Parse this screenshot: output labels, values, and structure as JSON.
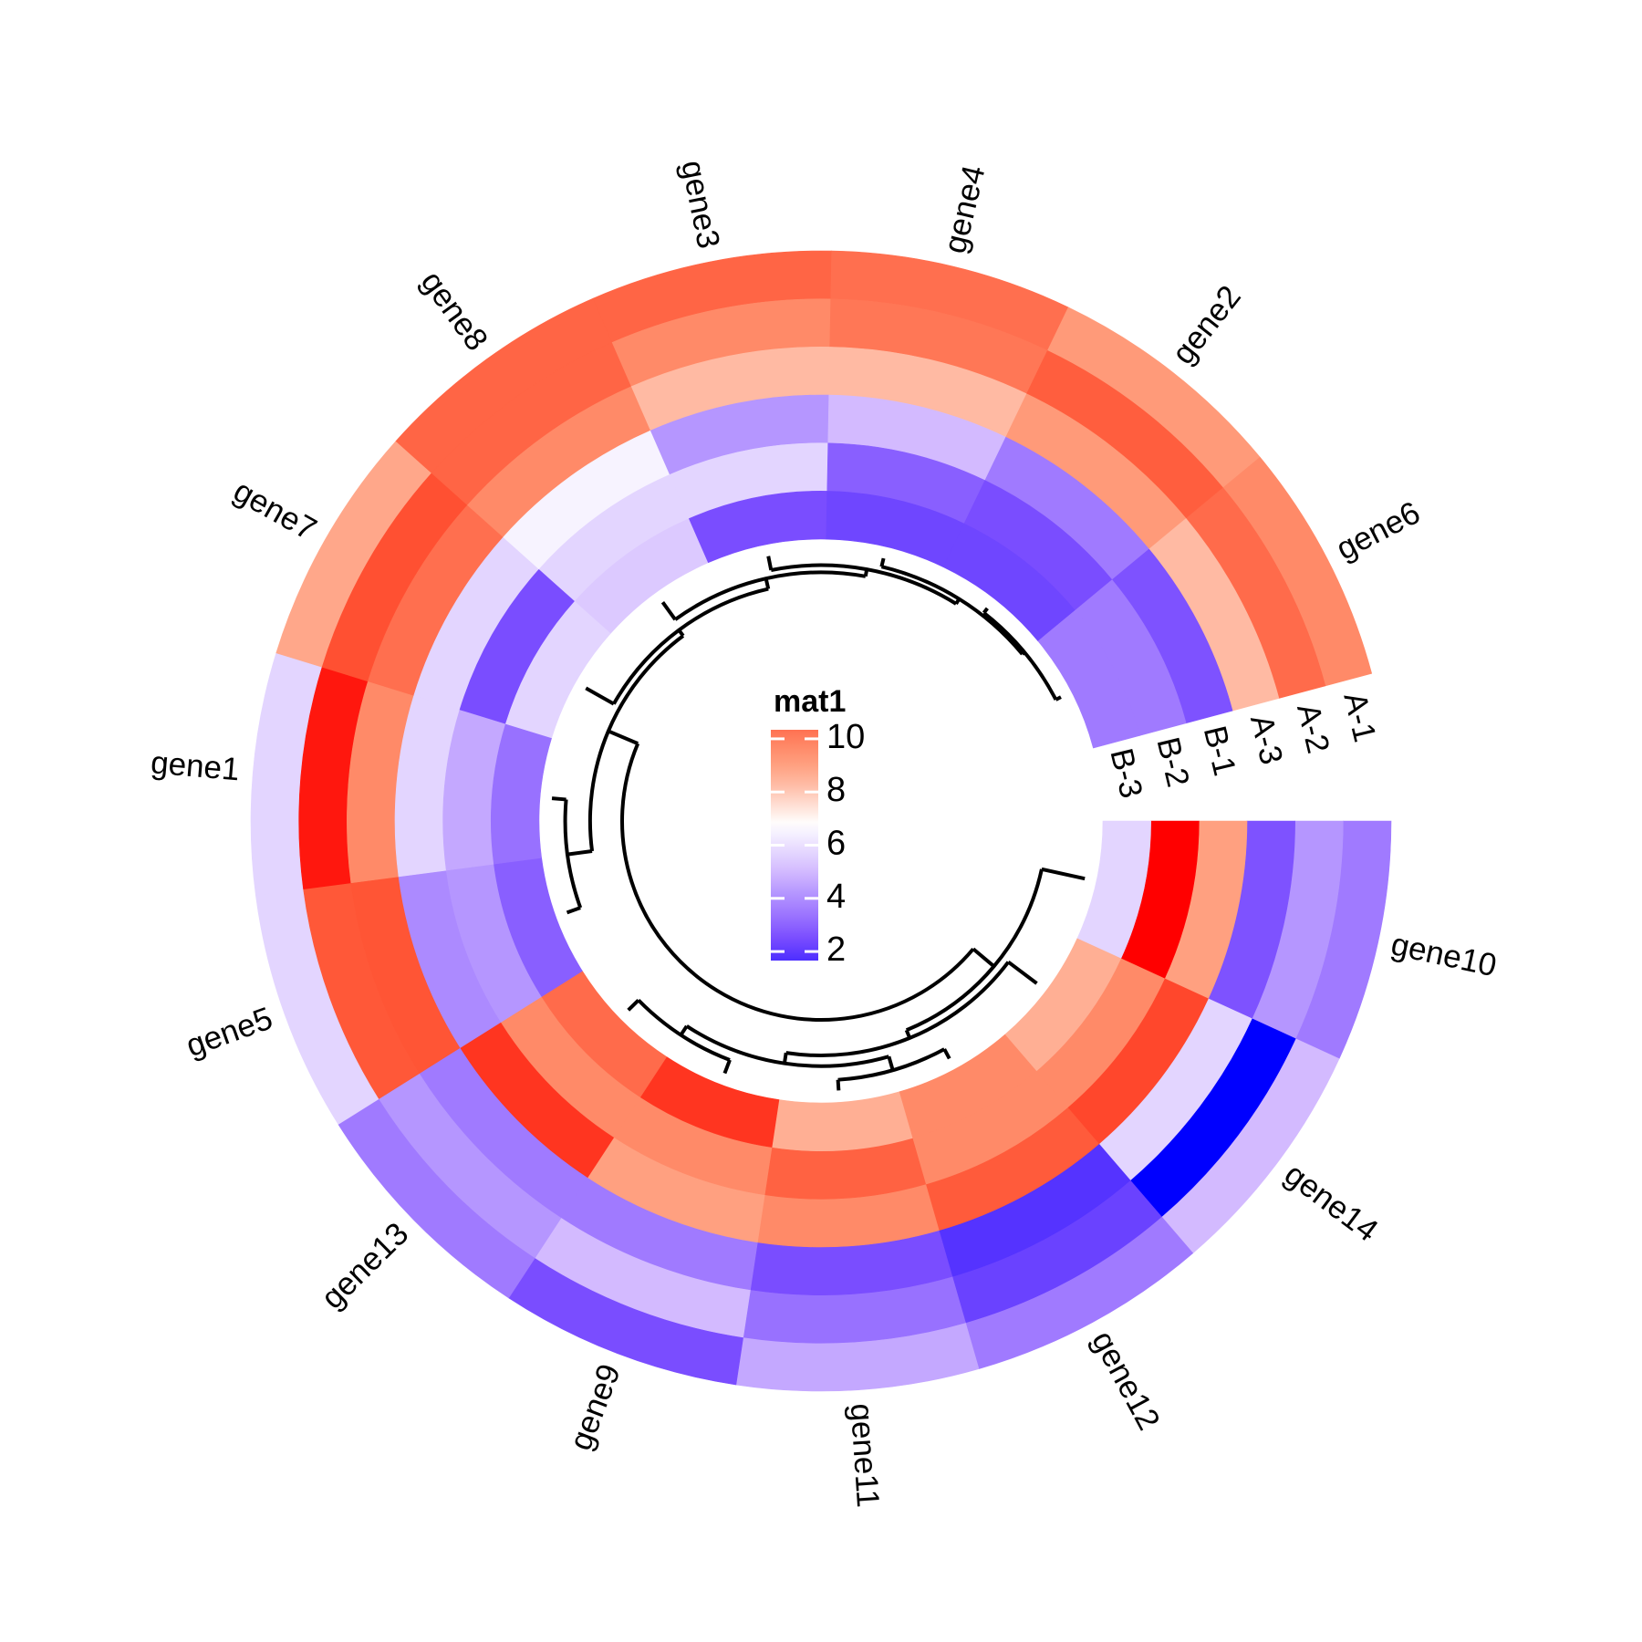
{
  "chart_data": {
    "type": "heatmap",
    "layout": "circular",
    "rows": [
      "gene10",
      "gene14",
      "gene12",
      "gene11",
      "gene9",
      "gene13",
      "gene5",
      "gene1",
      "gene7",
      "gene8",
      "gene3",
      "gene4",
      "gene2",
      "gene6"
    ],
    "columns": [
      "A-1",
      "A-2",
      "A-3",
      "B-1",
      "B-2",
      "B-3"
    ],
    "values": [
      [
        3.5,
        4.2,
        2.6,
        9.0,
        12.6,
        5.7
      ],
      [
        5.0,
        0.4,
        5.7,
        11.5,
        9.7,
        8.6
      ],
      [
        3.5,
        2.2,
        1.8,
        11.0,
        9.7,
        9.7
      ],
      [
        4.6,
        3.3,
        2.5,
        9.7,
        10.8,
        8.6
      ],
      [
        2.5,
        5.0,
        3.5,
        9.0,
        9.7,
        11.9
      ],
      [
        3.5,
        4.2,
        3.5,
        11.9,
        9.7,
        10.5
      ],
      [
        5.7,
        11.1,
        11.2,
        3.9,
        4.2,
        2.9
      ],
      [
        5.7,
        12.3,
        9.7,
        5.7,
        4.6,
        3.3
      ],
      [
        8.8,
        11.3,
        10.4,
        5.7,
        2.5,
        5.7
      ],
      [
        10.7,
        10.7,
        9.7,
        6.5,
        5.7,
        5.4
      ],
      [
        10.7,
        9.7,
        8.3,
        4.2,
        5.7,
        2.5
      ],
      [
        10.4,
        10.2,
        8.3,
        5.0,
        2.9,
        2.3
      ],
      [
        9.2,
        10.9,
        9.2,
        3.5,
        2.5,
        2.3
      ],
      [
        9.7,
        10.5,
        8.3,
        2.6,
        3.5,
        3.5
      ]
    ],
    "color_scale": [
      [
        0.4,
        "#0000FF"
      ],
      [
        1.8,
        "#5533FF"
      ],
      [
        2.5,
        "#7A4DFF"
      ],
      [
        3.5,
        "#A07AFF"
      ],
      [
        4.2,
        "#B596FF"
      ],
      [
        5.0,
        "#D3BAFF"
      ],
      [
        5.7,
        "#E3D5FF"
      ],
      [
        6.5,
        "#F7F3FF"
      ],
      [
        6.8,
        "#FFFFFF"
      ],
      [
        8.3,
        "#FFBAA3"
      ],
      [
        9.0,
        "#FFA080"
      ],
      [
        9.7,
        "#FF8A68"
      ],
      [
        10.5,
        "#FF6B4B"
      ],
      [
        11.2,
        "#FF5535"
      ],
      [
        11.9,
        "#FF3520"
      ],
      [
        12.6,
        "#FF0000"
      ]
    ],
    "legend": {
      "title": "mat1",
      "ticks": [
        10,
        8,
        6,
        4,
        2
      ],
      "tick_labels": [
        "10",
        "8",
        "6",
        "4",
        "2"
      ],
      "range": [
        1.66,
        10.34
      ],
      "placement": "center"
    },
    "dendrogram": {
      "h": 1.0,
      "children": [
        {
          "h": 0.62,
          "children": [
            "gene10",
            {
              "h": 0.5,
              "children": [
                "gene14",
                {
                  "h": 0.35,
                  "children": [
                    {
                      "h": 0.15,
                      "children": [
                        "gene12",
                        "gene11"
                      ]
                    },
                    {
                      "h": 0.2,
                      "children": [
                        "gene9",
                        "gene13"
                      ]
                    }
                  ]
                }
              ]
            }
          ]
        },
        {
          "h": 0.55,
          "children": [
            {
              "h": 0.2,
              "children": [
                "gene5",
                "gene1"
              ]
            },
            {
              "h": 0.45,
              "children": [
                "gene7",
                {
                  "h": 0.3,
                  "children": [
                    "gene8",
                    {
                      "h": 0.2,
                      "children": [
                        "gene3",
                        {
                          "h": 0.12,
                          "children": [
                            "gene4",
                            {
                              "h": 0.08,
                              "children": [
                                "gene2",
                                "gene6"
                              ]
                            }
                          ]
                        }
                      ]
                    }
                  ]
                }
              ]
            }
          ]
        }
      ]
    }
  }
}
